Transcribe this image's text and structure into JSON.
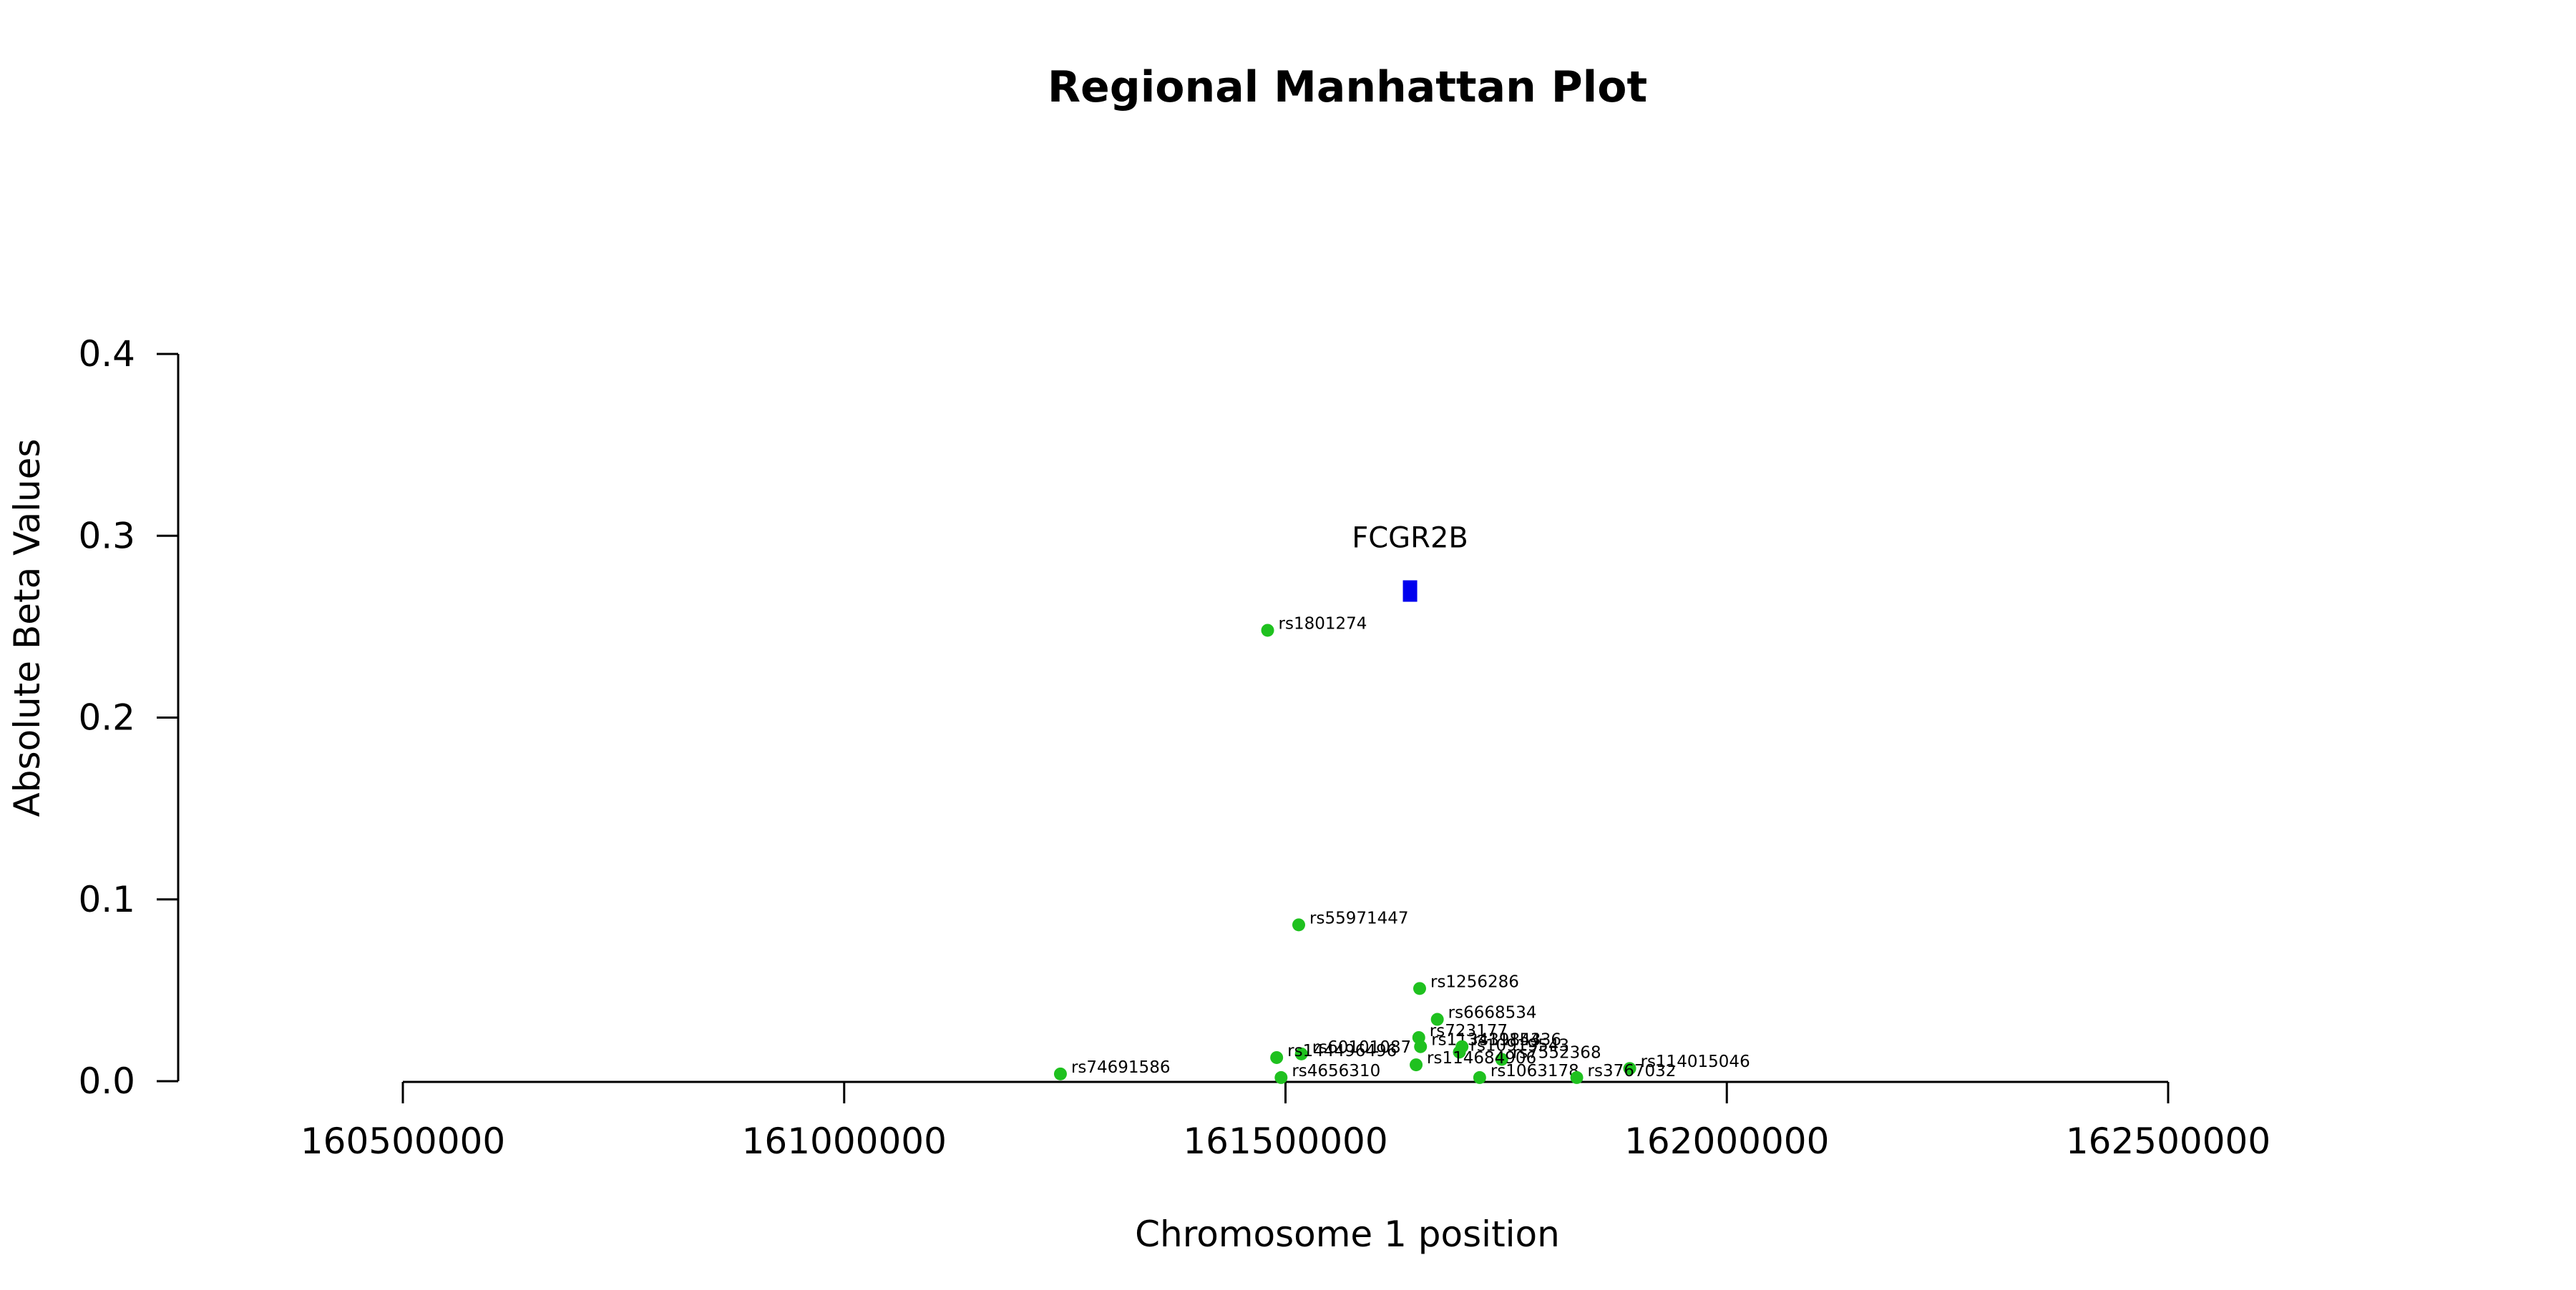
{
  "chart_data": {
    "type": "scatter",
    "title": "Regional Manhattan Plot",
    "xlabel": "Chromosome 1 position",
    "ylabel": "Absolute Beta Values",
    "xlim": [
      160500000,
      162500000
    ],
    "ylim": [
      0,
      0.4
    ],
    "x_ticks": [
      160500000,
      161000000,
      161500000,
      162000000,
      162500000
    ],
    "x_tick_labels": [
      "160500000",
      "161000000",
      "161500000",
      "162000000",
      "162500000"
    ],
    "y_ticks": [
      0,
      0.1,
      0.2,
      0.3,
      0.4
    ],
    "y_tick_labels": [
      "0.0",
      "0.1",
      "0.2",
      "0.3",
      "0.4"
    ],
    "grid": false,
    "point_color": "#1fc11f",
    "gene_color": "#0000ee",
    "gene": {
      "name": "FCGR2B",
      "start": 161633000,
      "end": 161648000,
      "y": 0.27
    },
    "points": [
      {
        "label": "rs1801274",
        "x": 161479745,
        "y": 0.248
      },
      {
        "label": "rs55971447",
        "x": 161515000,
        "y": 0.086
      },
      {
        "label": "rs1256286",
        "x": 161652000,
        "y": 0.051
      },
      {
        "label": "rs6668534",
        "x": 161672000,
        "y": 0.034
      },
      {
        "label": "rs723177",
        "x": 161651000,
        "y": 0.024
      },
      {
        "label": "rs113439843",
        "x": 161653000,
        "y": 0.019
      },
      {
        "label": "rs1115436",
        "x": 161700000,
        "y": 0.019
      },
      {
        "label": "rs10919543",
        "x": 161697000,
        "y": 0.016
      },
      {
        "label": "rs7552368",
        "x": 161745000,
        "y": 0.012
      },
      {
        "label": "rs114684906",
        "x": 161648000,
        "y": 0.009
      },
      {
        "label": "rs60101087",
        "x": 161518000,
        "y": 0.015
      },
      {
        "label": "rs144496496",
        "x": 161490000,
        "y": 0.013
      },
      {
        "label": "rs114015046",
        "x": 161890000,
        "y": 0.007
      },
      {
        "label": "rs74691586",
        "x": 161245000,
        "y": 0.004
      },
      {
        "label": "rs4656310",
        "x": 161495000,
        "y": 0.002
      },
      {
        "label": "rs1063178",
        "x": 161720000,
        "y": 0.002
      },
      {
        "label": "rs3767032",
        "x": 161830000,
        "y": 0.002
      }
    ]
  }
}
